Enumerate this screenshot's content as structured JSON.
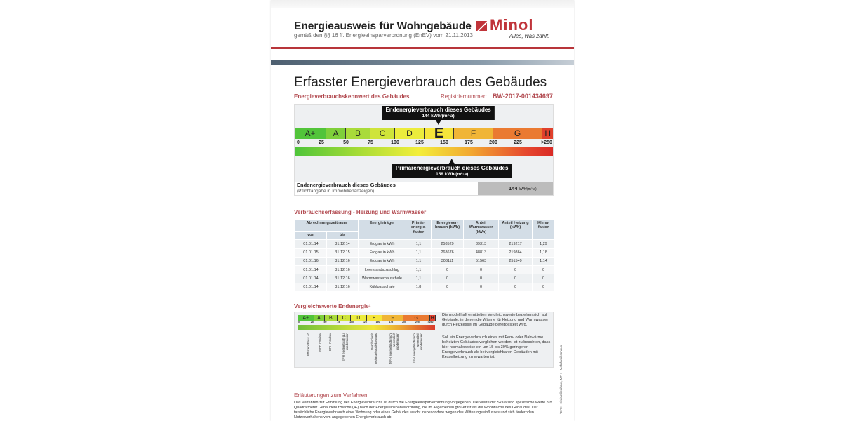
{
  "header": {
    "title": "Energieausweis für Wohngebäude",
    "subtitle": "gemäß den §§ 16 ff. Energieeinsparverordnung (EnEV) vom 21.11.2013",
    "logo": "Minol",
    "slogan": "Alles, was zählt."
  },
  "main_title": "Erfasster Energieverbrauch des Gebäudes",
  "kennwert": {
    "label": "Energieverbrauchskennwert des Gebäudes",
    "reg_label": "Registriernummer:",
    "reg_number": "BW-2017-001434697"
  },
  "scale": {
    "classes": [
      {
        "label": "A+",
        "from": 0,
        "to": 30,
        "color": "#52c43a"
      },
      {
        "label": "A",
        "from": 30,
        "to": 50,
        "color": "#7fcf3a"
      },
      {
        "label": "B",
        "from": 50,
        "to": 75,
        "color": "#a9db3a"
      },
      {
        "label": "C",
        "from": 75,
        "to": 100,
        "color": "#cfe43a"
      },
      {
        "label": "D",
        "from": 100,
        "to": 130,
        "color": "#ecec3c"
      },
      {
        "label": "E",
        "from": 130,
        "to": 160,
        "color": "#f6e53a"
      },
      {
        "label": "F",
        "from": 160,
        "to": 200,
        "color": "#f0b536"
      },
      {
        "label": "G",
        "from": 200,
        "to": 250,
        "color": "#ea7a32"
      },
      {
        "label": "H",
        "from": 250,
        "to": 261,
        "color": "#e0402c"
      }
    ],
    "active_class": "E",
    "ticks": [
      "0",
      "25",
      "50",
      "75",
      "100",
      "125",
      "150",
      "175",
      "200",
      "225",
      ">250"
    ],
    "end_energy": {
      "label": "Endenergieverbrauch dieses Gebäudes",
      "value": 144,
      "value_text": "144 kWh/(m²·a)"
    },
    "primary_energy": {
      "label": "Primärenergieverbrauch dieses Gebäudes",
      "value": 158,
      "value_text": "158 kWh/(m²·a)"
    }
  },
  "summary": {
    "label": "Endenergieverbrauch dieses Gebäudes",
    "note": "(Pflichtangabe in Immobilienanzeigen)",
    "value": "144",
    "unit": "kWh/(m²·a)"
  },
  "consumption": {
    "title": "Verbrauchserfassung - Heizung und Warmwasser",
    "headers": {
      "period": "Abrechnungszeitraum",
      "from": "von",
      "to": "bis",
      "carrier": "Energieträger",
      "pef": "Primär-energie-faktor",
      "usage": "Energiever-brauch (kWh)",
      "ww": "Anteil Warmwasser (kWh)",
      "heat": "Anteil Heizung (kWh)",
      "klima": "Klima-faktor"
    },
    "rows": [
      [
        "01.01.14",
        "31.12.14",
        "Erdgas in kWh",
        "1,1",
        "258529",
        "39313",
        "219217",
        "1,29"
      ],
      [
        "01.01.15",
        "31.12.15",
        "Erdgas in kWh",
        "1,1",
        "268676",
        "48813",
        "219864",
        "1,18"
      ],
      [
        "01.01.16",
        "31.12.16",
        "Erdgas in kWh",
        "1,1",
        "303111",
        "51563",
        "251549",
        "1,14"
      ],
      [
        "01.01.14",
        "31.12.16",
        "Leerstandszuschlag",
        "1,1",
        "0",
        "0",
        "0",
        "0"
      ],
      [
        "01.01.14",
        "31.12.16",
        "Warmwasserpauschale",
        "1,1",
        "0",
        "0",
        "0",
        "0"
      ],
      [
        "01.01.14",
        "31.12.16",
        "Kühlpauschale",
        "1,8",
        "0",
        "0",
        "0",
        "0"
      ]
    ]
  },
  "comparison": {
    "title": "Vergleichswerte Endenergie¹",
    "classes": [
      "A+",
      "A",
      "B",
      "C",
      "D",
      "E",
      "F",
      "G",
      "H"
    ],
    "ticks": [
      "0",
      "25",
      "50",
      "75",
      "100",
      "125",
      "150",
      "175",
      "200",
      "225",
      ">250"
    ],
    "refs": [
      {
        "label": "Effizienzhaus 40",
        "value": 18
      },
      {
        "label": "MFH Neubau",
        "value": 40
      },
      {
        "label": "EFH Neubau",
        "value": 60
      },
      {
        "label": "EFH energetisch gut modernisiert",
        "value": 85
      },
      {
        "label": "Durchschnitt Wohngebäudebestand",
        "value": 140
      },
      {
        "label": "MFH energetisch nicht wesentlich modernisiert",
        "value": 175
      },
      {
        "label": "EFH energetisch nicht wesentlich modernisiert",
        "value": 220
      }
    ],
    "text1": "Die modellhaft ermittelten Vergleichswerte beziehen sich auf Gebäude, in denen die Wärme für Heizung und Warmwasser durch Heizkessel im Gebäude bereitgestellt wird.",
    "text2": "Soll ein Energieverbrauch eines mit Fern- oder Nahwärme beheizten Gebäudes verglichen werden, ist zu beachten, dass hier normalerweise ein um 15 bis 30% geringerer Energieverbrauch als bei vergleichbaren Gebäuden mit Kesselheizung zu erwarten ist.",
    "footnote": "¹EFH - Einfamilienhaus, MFH - Mehrfamilienhaus"
  },
  "explanation": {
    "title": "Erläuterungen zum Verfahren",
    "text": "Das Verfahren zur Ermittlung des Energieverbrauchs ist durch die Energieeinsparverordnung vorgegeben. Die Werte der Skala sind spezifische Werte pro Quadratmeter Gebäudenutzfläche (Aₙ) nach der Energieeinsparverordnung, die im Allgemeinen größer ist als die Wohnfläche des Gebäudes. Der tatsächliche Energieverbrauch einer Wohnung oder eines Gebäudes weicht insbesondere wegen des Witterungseinflusses und sich ändernden Nutzerverhaltens vom angegebenen Energieverbrauch ab."
  }
}
